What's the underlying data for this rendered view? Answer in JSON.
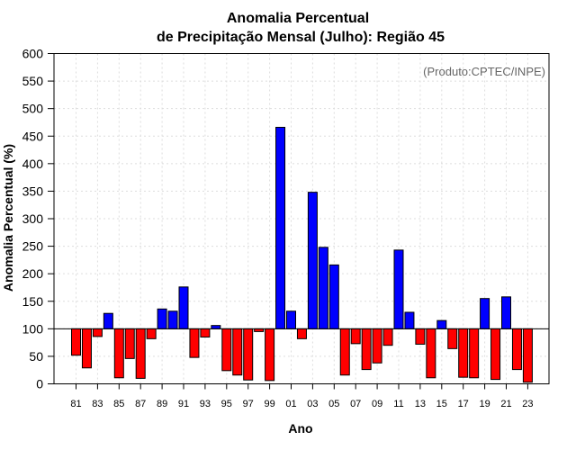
{
  "chart_data": {
    "type": "bar",
    "title_line1": "Anomalia Percentual",
    "title_line2": "de Precipitação Mensal (Julho): Região 45",
    "xlabel": "Ano",
    "ylabel": "Anomalia Percentual (%)",
    "source_note": "(Produto:CPTEC/INPE)",
    "baseline": 100,
    "ylim": [
      0,
      600
    ],
    "yticks": [
      0,
      50,
      100,
      150,
      200,
      250,
      300,
      350,
      400,
      450,
      500,
      550,
      600
    ],
    "categories": [
      "81",
      "82",
      "83",
      "84",
      "85",
      "86",
      "87",
      "88",
      "89",
      "90",
      "91",
      "92",
      "93",
      "94",
      "95",
      "96",
      "97",
      "98",
      "99",
      "00",
      "01",
      "02",
      "03",
      "04",
      "05",
      "06",
      "07",
      "08",
      "09",
      "10",
      "11",
      "12",
      "13",
      "14",
      "15",
      "16",
      "17",
      "18",
      "19",
      "20",
      "21",
      "22",
      "23"
    ],
    "tick_labels": [
      "81",
      "83",
      "85",
      "87",
      "89",
      "91",
      "93",
      "95",
      "97",
      "99",
      "01",
      "03",
      "05",
      "07",
      "09",
      "11",
      "13",
      "15",
      "17",
      "19",
      "21",
      "23"
    ],
    "values": [
      52,
      29,
      86,
      128,
      11,
      46,
      10,
      82,
      136,
      132,
      176,
      48,
      85,
      106,
      24,
      16,
      7,
      95,
      6,
      466,
      132,
      82,
      348,
      248,
      216,
      16,
      73,
      26,
      38,
      70,
      243,
      130,
      72,
      11,
      115,
      64,
      12,
      11,
      155,
      8,
      158,
      26,
      3
    ],
    "colors": {
      "above": "#0000ff",
      "below": "#ff0000",
      "grid": "#dddddd",
      "axis": "#000000"
    }
  }
}
